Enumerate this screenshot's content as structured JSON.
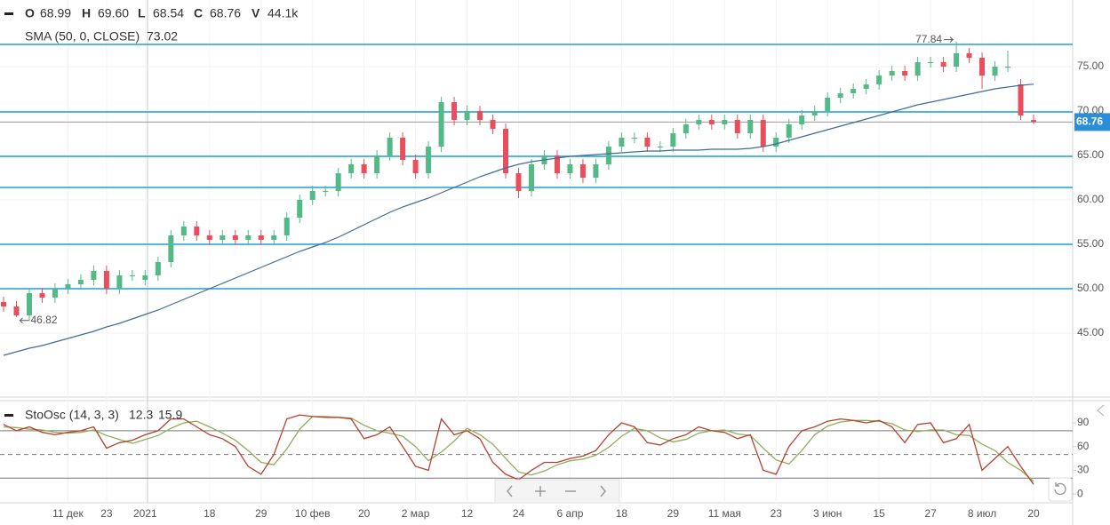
{
  "chart_data": {
    "type": "candlestick",
    "header": {
      "open_key": "O",
      "open": "68.99",
      "high_key": "H",
      "high": "69.60",
      "low_key": "L",
      "low": "68.54",
      "close_key": "C",
      "close": "68.76",
      "volume_key": "V",
      "volume": "44.1k"
    },
    "up_color": "#53b987",
    "down_color": "#eb4d5c",
    "categories": [
      null,
      null,
      null,
      null,
      null,
      "11 дек",
      null,
      null,
      "23",
      null,
      null,
      "2021",
      null,
      null,
      null,
      null,
      "18",
      null,
      null,
      null,
      "29",
      null,
      null,
      null,
      "10 фев",
      null,
      null,
      null,
      "20",
      null,
      null,
      null,
      "2 мар",
      null,
      null,
      null,
      "12",
      null,
      null,
      null,
      "24",
      null,
      null,
      null,
      "6 апр",
      null,
      null,
      null,
      "18",
      null,
      null,
      null,
      "29",
      null,
      null,
      null,
      "11 мая",
      null,
      null,
      null,
      "23",
      null,
      null,
      null,
      "3 июн",
      null,
      null,
      null,
      "15",
      null,
      null,
      null,
      "27",
      null,
      null,
      null,
      "8 июл",
      null,
      null,
      null,
      "20"
    ],
    "open": [
      48.5,
      48,
      47,
      49.5,
      49,
      50,
      50.5,
      51,
      52,
      50,
      51.5,
      51,
      51.5,
      53,
      56,
      57,
      56,
      55.5,
      56,
      55.5,
      56,
      55.5,
      56,
      58,
      60,
      61,
      61,
      63,
      64,
      63,
      65,
      67,
      64.5,
      63,
      66,
      71,
      69,
      70,
      69,
      68,
      63,
      61,
      64,
      65,
      63,
      64,
      62.5,
      64,
      66,
      67,
      67,
      66,
      66,
      67.5,
      68.5,
      69,
      68.5,
      69,
      67.5,
      69,
      66,
      67,
      68.5,
      69.5,
      70,
      71.5,
      72,
      72.5,
      73,
      74,
      74.5,
      74,
      75.5,
      75.5,
      75,
      76.5,
      76,
      74,
      75,
      73,
      68.99
    ],
    "high": [
      49.1,
      48.6,
      50.1,
      50.1,
      50.6,
      51.1,
      51.6,
      52.6,
      52.6,
      52.1,
      52.1,
      52.1,
      53.6,
      56.6,
      57.6,
      57.6,
      56.6,
      56.6,
      56.6,
      56.6,
      56.6,
      56.6,
      58.6,
      60.6,
      61.6,
      61.6,
      63.6,
      64.6,
      64.6,
      65.6,
      67.6,
      67.6,
      65.1,
      66.6,
      71.6,
      71.6,
      70.6,
      70.6,
      69.6,
      68.6,
      63.6,
      64.6,
      65.6,
      65.6,
      64.6,
      64.6,
      64.6,
      66.6,
      67.6,
      67.6,
      67.6,
      66.6,
      68.1,
      69.1,
      69.6,
      69.6,
      69.6,
      69.6,
      69.6,
      69.6,
      67.6,
      69.1,
      70.1,
      70.6,
      72.1,
      72.6,
      73.1,
      73.6,
      74.6,
      75.1,
      75.1,
      76.1,
      76.1,
      76.1,
      77.84,
      77.1,
      76.6,
      75.6,
      76.8,
      73.6,
      69.6
    ],
    "low": [
      47.4,
      46.82,
      46.4,
      48.4,
      48.4,
      49.4,
      49.9,
      50.4,
      49.4,
      49.4,
      50.9,
      50.4,
      50.9,
      52.4,
      55.4,
      55.4,
      54.9,
      54.9,
      54.9,
      54.9,
      54.9,
      54.9,
      55.4,
      57.4,
      59.4,
      60.4,
      60.4,
      62.4,
      62.4,
      62.4,
      64.4,
      63.9,
      62.4,
      62.4,
      65.4,
      68.4,
      68.4,
      68.4,
      67.4,
      62.4,
      60.2,
      60.4,
      63.4,
      62.4,
      62.4,
      61.9,
      61.9,
      63.4,
      65.4,
      66.4,
      65.4,
      65.4,
      65.4,
      66.9,
      67.9,
      67.9,
      67.9,
      66.9,
      66.9,
      65.4,
      65.4,
      66.4,
      67.9,
      68.9,
      69.4,
      70.9,
      71.4,
      71.9,
      72.4,
      73.4,
      73.4,
      73.4,
      74.9,
      74.4,
      74.4,
      75.4,
      72.5,
      73.4,
      74.4,
      69.0,
      68.54
    ],
    "close": [
      48,
      47,
      49.5,
      49,
      50,
      50.5,
      51,
      52,
      50,
      51.5,
      51.5,
      51.5,
      53,
      56,
      57,
      56,
      55.5,
      56,
      55.5,
      56,
      55.5,
      56,
      58,
      60,
      61,
      61,
      63,
      64,
      63,
      65,
      67,
      64.5,
      63,
      66,
      71,
      69,
      70,
      69,
      68,
      63,
      61,
      64,
      65,
      63,
      64,
      62.5,
      64,
      66,
      67,
      67,
      66,
      66,
      67.5,
      68.5,
      69,
      68.5,
      69,
      67.5,
      69,
      66,
      67,
      68.5,
      69.5,
      70,
      71.5,
      72,
      72.5,
      73,
      74,
      74.5,
      74,
      75.5,
      75.5,
      75,
      76.5,
      76,
      74,
      75,
      75,
      69.5,
      68.76
    ],
    "sma": {
      "label": "SMA (50, 0, CLOSE)",
      "value_label": "73.02",
      "color": "#3f6b9a",
      "values": [
        42.5,
        42.9,
        43.3,
        43.6,
        44,
        44.4,
        44.8,
        45.2,
        45.7,
        46.1,
        46.6,
        47.1,
        47.6,
        48.2,
        48.8,
        49.4,
        50,
        50.6,
        51.2,
        51.8,
        52.4,
        53,
        53.6,
        54.2,
        54.7,
        55.2,
        55.8,
        56.5,
        57.2,
        57.9,
        58.6,
        59.2,
        59.7,
        60.2,
        60.8,
        61.4,
        62,
        62.6,
        63.1,
        63.6,
        64,
        64.3,
        64.5,
        64.7,
        64.9,
        65,
        65.1,
        65.2,
        65.3,
        65.4,
        65.5,
        65.5,
        65.6,
        65.6,
        65.6,
        65.7,
        65.7,
        65.7,
        65.8,
        66,
        66.3,
        66.7,
        67.1,
        67.5,
        67.9,
        68.3,
        68.7,
        69.1,
        69.5,
        69.9,
        70.3,
        70.7,
        71,
        71.3,
        71.6,
        71.9,
        72.2,
        72.5,
        72.7,
        72.9,
        73.02
      ]
    },
    "ylim": [
      38,
      82.5
    ],
    "yticks": [
      {
        "value": 45,
        "label": "45.00"
      },
      {
        "value": 50,
        "label": "50.00"
      },
      {
        "value": 55,
        "label": "55.00"
      },
      {
        "value": 60,
        "label": "60.00"
      },
      {
        "value": 65,
        "label": "65.00"
      },
      {
        "value": 70,
        "label": "70.00"
      },
      {
        "value": 75,
        "label": "75.00"
      }
    ],
    "levels": [
      77.5,
      69.9,
      64.9,
      61.4,
      55,
      50
    ],
    "level_color": "#1f9fd6",
    "last_price_color": "#2a8fd8",
    "annotations": [
      {
        "text": "77.84",
        "index": 74,
        "value": 77.84
      },
      {
        "text": "46.82",
        "index": 1,
        "value": 46.82
      }
    ],
    "stoch": {
      "label": "StoOsc (14, 3, 3)",
      "k_label": "12.3",
      "d_label": "15.9",
      "ylim": [
        -10,
        113.6
      ],
      "yticks": [
        0,
        30,
        60,
        90
      ],
      "bands": [
        80,
        50,
        20
      ],
      "k": {
        "color": "#b5412f",
        "values": [
          88,
          80,
          85,
          78,
          75,
          78,
          80,
          85,
          58,
          65,
          68,
          75,
          80,
          95,
          95,
          85,
          75,
          70,
          60,
          35,
          25,
          50,
          95,
          100,
          98,
          97,
          97,
          95,
          70,
          75,
          85,
          60,
          35,
          30,
          95,
          75,
          80,
          70,
          40,
          25,
          18,
          30,
          40,
          40,
          45,
          48,
          55,
          75,
          90,
          85,
          65,
          62,
          70,
          75,
          85,
          80,
          78,
          70,
          75,
          30,
          25,
          60,
          80,
          85,
          92,
          95,
          93,
          90,
          93,
          85,
          65,
          88,
          90,
          65,
          70,
          88,
          30,
          45,
          60,
          35,
          12.3
        ]
      },
      "d": {
        "color": "#8fae5a",
        "values": [
          85,
          84,
          82,
          81,
          78,
          77,
          78,
          81,
          74,
          69,
          64,
          69,
          74,
          83,
          90,
          92,
          85,
          77,
          68,
          55,
          40,
          37,
          57,
          82,
          98,
          98,
          97,
          96,
          87,
          80,
          77,
          73,
          60,
          42,
          53,
          67,
          83,
          75,
          63,
          45,
          28,
          24,
          29,
          37,
          42,
          44,
          49,
          59,
          73,
          83,
          80,
          71,
          66,
          69,
          77,
          80,
          81,
          76,
          74,
          58,
          43,
          38,
          55,
          75,
          86,
          91,
          93,
          93,
          92,
          89,
          81,
          79,
          81,
          81,
          75,
          74,
          63,
          55,
          40,
          30,
          15.9
        ]
      }
    }
  }
}
